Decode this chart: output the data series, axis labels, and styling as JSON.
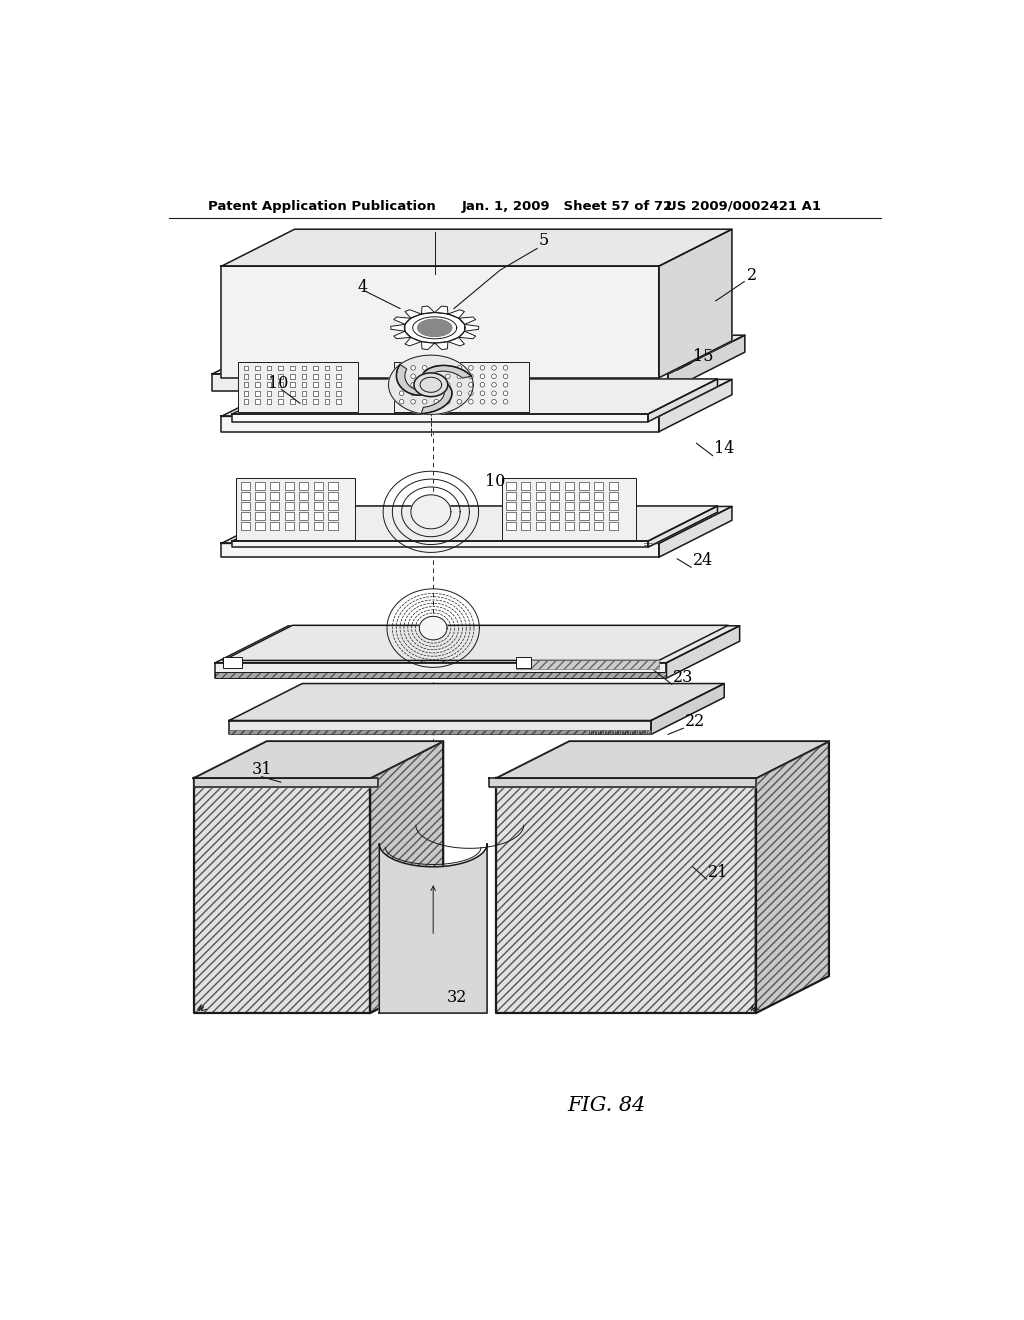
{
  "title_left": "Patent Application Publication",
  "title_mid": "Jan. 1, 2009   Sheet 57 of 72",
  "title_right": "US 2009/0002421 A1",
  "fig_label": "FIG. 84",
  "bg": "#ffffff",
  "lc": "#1a1a1a",
  "labels": [
    "2",
    "4",
    "5",
    "10",
    "10",
    "14",
    "15",
    "21",
    "22",
    "23",
    "24",
    "31",
    "32"
  ]
}
